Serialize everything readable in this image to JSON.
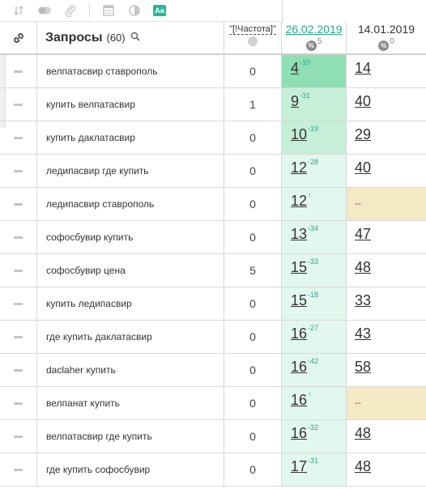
{
  "toolbar": {
    "icons": [
      "sort-icon",
      "toggle-icon",
      "paperclip-icon",
      "table-icon",
      "contrast-icon",
      "text-case-icon"
    ],
    "aa_label": "Aa"
  },
  "header": {
    "title": "Запросы",
    "count": "(60)",
    "frequency_label": "\"[!Частота]\"",
    "date1": "26.02.2019",
    "date1_pct_symbol": "%",
    "date1_pct": "5",
    "date2": "14.01.2019",
    "date2_pct_symbol": "%",
    "date2_pct": "0"
  },
  "rows": [
    {
      "query": "велпатасвир ставрополь",
      "freq": "0",
      "pos1": "4",
      "delta1": "-10",
      "pos2": "14"
    },
    {
      "query": "купить велпатасвир",
      "freq": "1",
      "pos1": "9",
      "delta1": "-31",
      "pos2": "40"
    },
    {
      "query": "купить даклатасвир",
      "freq": "0",
      "pos1": "10",
      "delta1": "-19",
      "pos2": "29"
    },
    {
      "query": "ледипасвир где купить",
      "freq": "0",
      "pos1": "12",
      "delta1": "-28",
      "pos2": "40"
    },
    {
      "query": "ледипасвир ставрополь",
      "freq": "0",
      "pos1": "12",
      "delta1": "↑",
      "pos2": "--"
    },
    {
      "query": "софосбувир купить",
      "freq": "0",
      "pos1": "13",
      "delta1": "-34",
      "pos2": "47"
    },
    {
      "query": "софосбувир цена",
      "freq": "5",
      "pos1": "15",
      "delta1": "-33",
      "pos2": "48"
    },
    {
      "query": "купить ледипасвир",
      "freq": "0",
      "pos1": "15",
      "delta1": "-18",
      "pos2": "33"
    },
    {
      "query": "где купить даклатасвир",
      "freq": "0",
      "pos1": "16",
      "delta1": "-27",
      "pos2": "43"
    },
    {
      "query": "daclaher купить",
      "freq": "0",
      "pos1": "16",
      "delta1": "-42",
      "pos2": "58"
    },
    {
      "query": "велпанат купить",
      "freq": "0",
      "pos1": "16",
      "delta1": "↑",
      "pos2": "--"
    },
    {
      "query": "велпатасвир где купить",
      "freq": "0",
      "pos1": "16",
      "delta1": "-32",
      "pos2": "48"
    },
    {
      "query": "где купить софосбувир",
      "freq": "0",
      "pos1": "17",
      "delta1": "-31",
      "pos2": "48"
    }
  ],
  "colors": {
    "accent": "#28b69a",
    "top1_cell": "#90deb4",
    "top3_cell": "#c6efda",
    "default_cell": "#e2f7ee",
    "missing_cell": "#f5e8c4"
  }
}
